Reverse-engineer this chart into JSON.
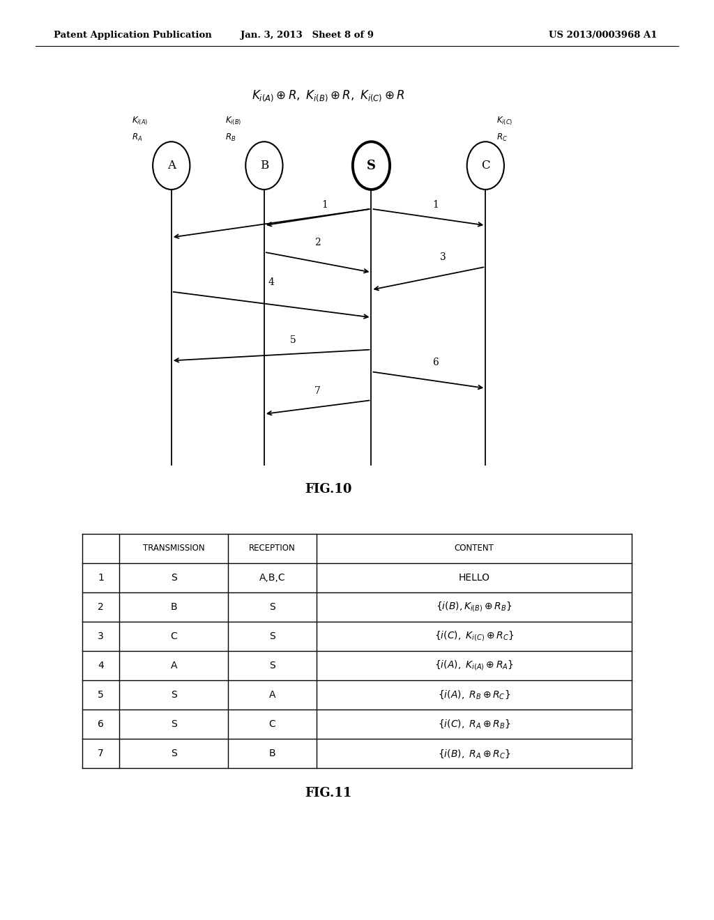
{
  "bg_color": "#ffffff",
  "header_left": "Patent Application Publication",
  "header_mid": "Jan. 3, 2013   Sheet 8 of 9",
  "header_right": "US 2013/0003968 A1",
  "fig10_title": "FIG.10",
  "fig11_title": "FIG.11",
  "table_rows": [
    {
      "num": "1",
      "trans": "S",
      "recep": "A,B,C",
      "content": "HELLO",
      "italic": false
    },
    {
      "num": "2",
      "trans": "B",
      "recep": "S",
      "content": "$\\{i(B),K_{i(B)} \\oplus R_B\\}$",
      "italic": true
    },
    {
      "num": "3",
      "trans": "C",
      "recep": "S",
      "content": "$\\{i(C),\\ K_{i(C)} \\oplus R_C\\}$",
      "italic": true
    },
    {
      "num": "4",
      "trans": "A",
      "recep": "S",
      "content": "$\\{i(A),\\ K_{i(A)} \\oplus R_A\\}$",
      "italic": true
    },
    {
      "num": "5",
      "trans": "S",
      "recep": "A",
      "content": "$\\{i(A),\\ R_B \\oplus R_C\\}$",
      "italic": true
    },
    {
      "num": "6",
      "trans": "S",
      "recep": "C",
      "content": "$\\{i(C),\\ R_A \\oplus R_B\\}$",
      "italic": true
    },
    {
      "num": "7",
      "trans": "S",
      "recep": "B",
      "content": "$\\{i(B),\\ R_A \\oplus R_C\\}$",
      "italic": true
    }
  ]
}
